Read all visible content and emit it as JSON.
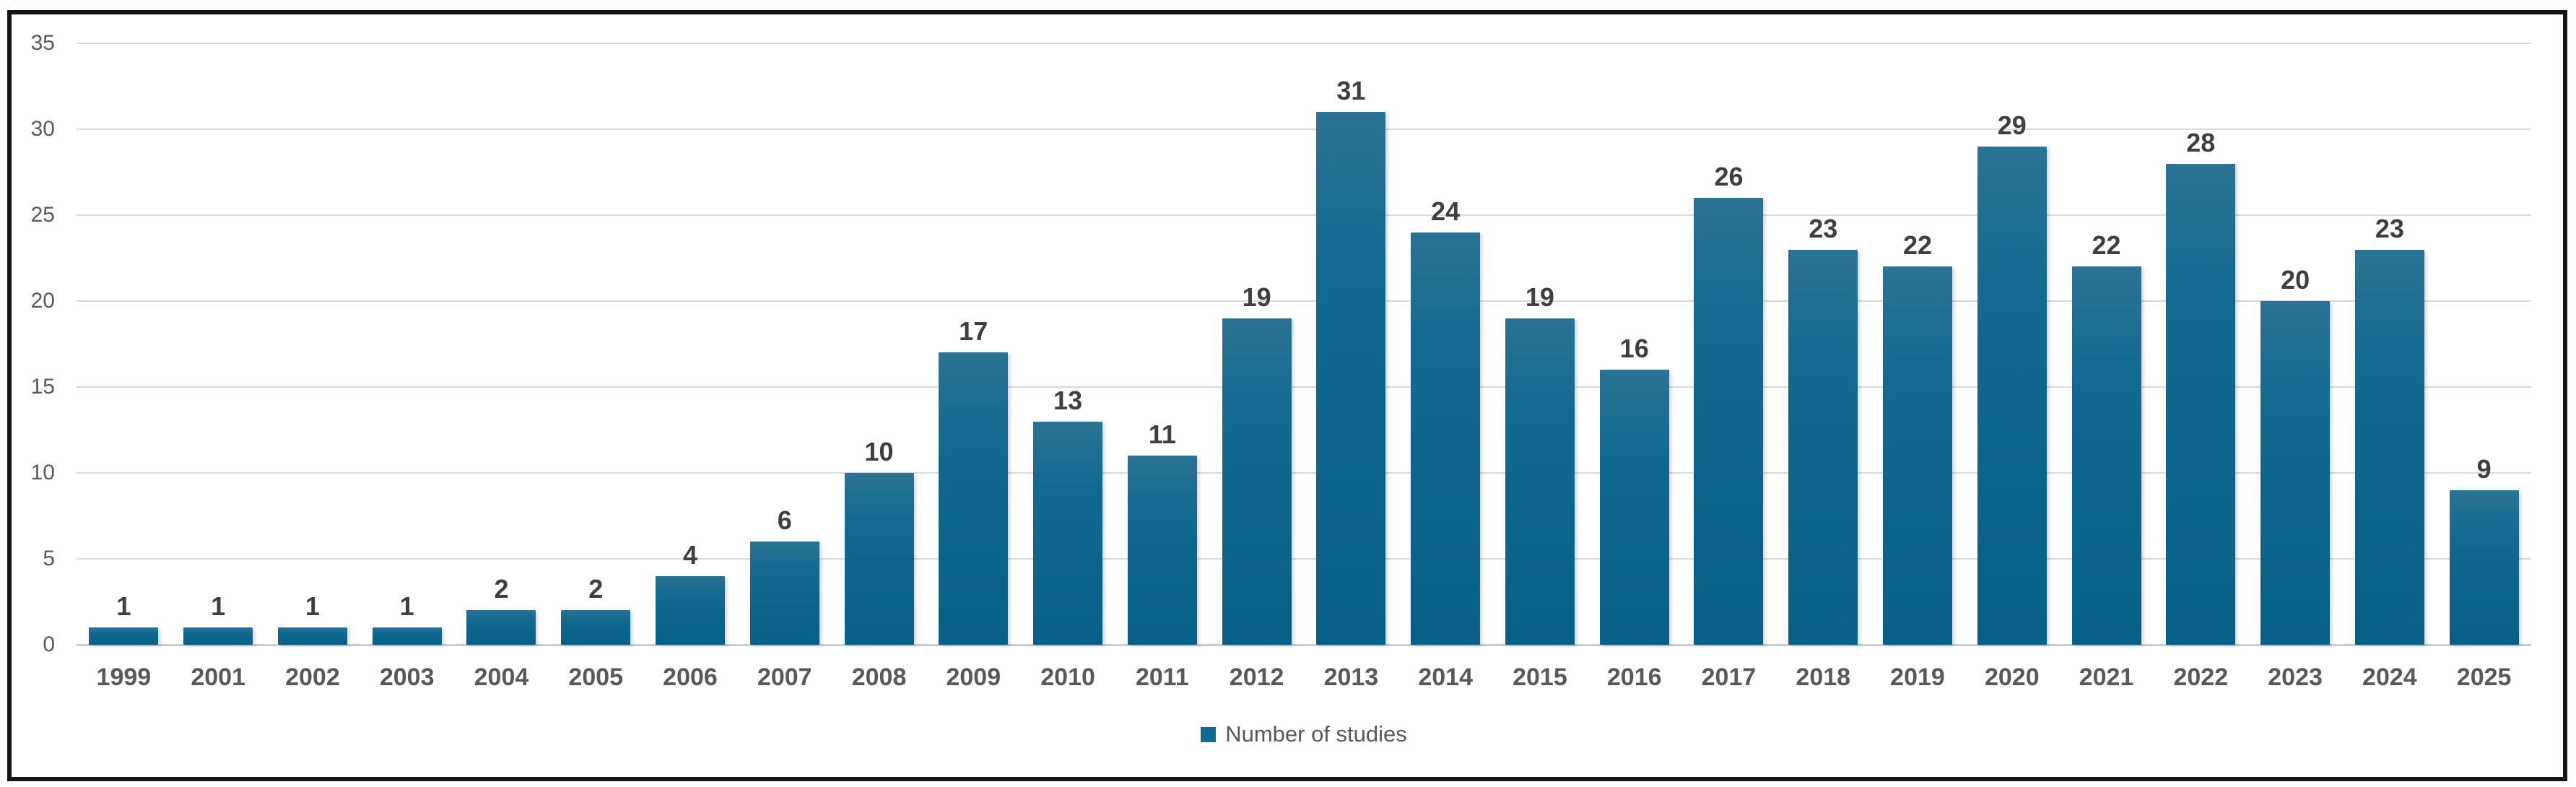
{
  "chart_data": {
    "type": "bar",
    "title": "",
    "categories": [
      "1999",
      "2001",
      "2002",
      "2003",
      "2004",
      "2005",
      "2006",
      "2007",
      "2008",
      "2009",
      "2010",
      "2011",
      "2012",
      "2013",
      "2014",
      "2015",
      "2016",
      "2017",
      "2018",
      "2019",
      "2020",
      "2021",
      "2022",
      "2023",
      "2024",
      "2025"
    ],
    "values": [
      1,
      1,
      1,
      1,
      2,
      2,
      4,
      6,
      10,
      17,
      13,
      11,
      19,
      31,
      24,
      19,
      16,
      26,
      23,
      22,
      29,
      22,
      28,
      20,
      23,
      9
    ],
    "series": [
      {
        "name": "Number of studies",
        "values": [
          1,
          1,
          1,
          1,
          2,
          2,
          4,
          6,
          10,
          17,
          13,
          11,
          19,
          31,
          24,
          19,
          16,
          26,
          23,
          22,
          29,
          22,
          28,
          20,
          23,
          9
        ]
      }
    ],
    "xlabel": "",
    "ylabel": "",
    "ylim": [
      0,
      35
    ],
    "yticks": [
      0,
      5,
      10,
      15,
      20,
      25,
      30,
      35
    ],
    "grid": true,
    "legend_position": "bottom-center",
    "data_labels": true,
    "bar_color": "#0e6b91",
    "gridline_color": "#d9d9d9",
    "value_label_color": "#3f3f3f",
    "axis_label_color": "#595959",
    "frame_border_color": "#141414"
  },
  "legend": {
    "label": "Number of studies",
    "marker_color": "#0e6b91"
  }
}
